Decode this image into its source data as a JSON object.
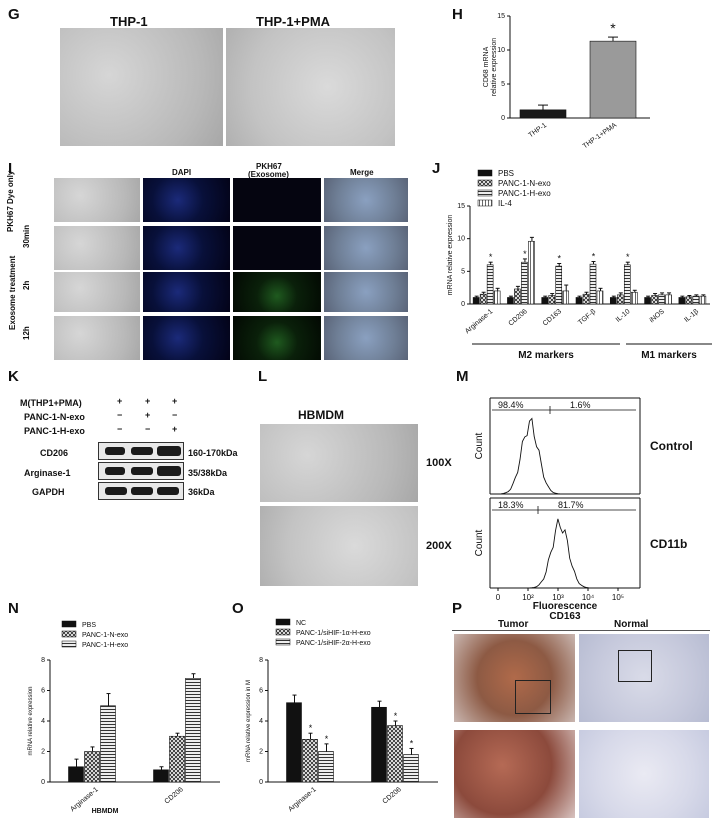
{
  "labels": {
    "G": "G",
    "H": "H",
    "I": "I",
    "J": "J",
    "K": "K",
    "L": "L",
    "M": "M",
    "N": "N",
    "O": "O",
    "P": "P"
  },
  "panelG": {
    "left_title": "THP-1",
    "right_title": "THP-1+PMA"
  },
  "panelI": {
    "col_headers": [
      "DAPI",
      "PKH67\n(Exosome)",
      "Merge"
    ],
    "col_header_dapi": "DAPI",
    "col_header_pkh": "PKH67",
    "col_header_pkh2": "(Exosome)",
    "col_header_merge": "Merge",
    "row_dye": "PKH67 Dye only",
    "row_group": "Exosome treatment",
    "row_30": "30min",
    "row_2h": "2h",
    "row_12h": "12h"
  },
  "panelK": {
    "cond1": "M(THP1+PMA)",
    "cond2": "PANC-1-N-exo",
    "cond3": "PANC-1-H-exo",
    "signs": [
      [
        "+",
        "+",
        "+"
      ],
      [
        "−",
        "+",
        "−"
      ],
      [
        "−",
        "−",
        "+"
      ]
    ],
    "bands": [
      {
        "name": "CD206",
        "size": "160-170kDa"
      },
      {
        "name": "Arginase-1",
        "size": "35/38kDa"
      },
      {
        "name": "GAPDH",
        "size": "36kDa"
      }
    ]
  },
  "panelL": {
    "title": "HBMDM",
    "mag1": "100X",
    "mag2": "200X"
  },
  "panelM": {
    "top_left_pct": "98.4%",
    "top_right_pct": "1.6%",
    "bot_left_pct": "18.3%",
    "bot_right_pct": "81.7%",
    "ylabel": "Count",
    "xlabel": "Fluorescence",
    "xlabel2": "CD163",
    "top_label": "Control",
    "bot_label": "CD11b",
    "ticks": [
      "0",
      "10²",
      "10³",
      "10⁴",
      "10⁵"
    ]
  },
  "panelP": {
    "tumor": "Tumor",
    "normal": "Normal"
  },
  "chart_data": [
    {
      "id": "H",
      "type": "bar",
      "categories": [
        "THP-1",
        "THP-1+PMA"
      ],
      "values": [
        1.2,
        11.3
      ],
      "errors": [
        0.7,
        0.6
      ],
      "ylabel": "CD68 mRNA",
      "ylabel2": "relative expression",
      "ylim": [
        0,
        15
      ],
      "yticks": [
        "0",
        "5",
        "10",
        "15"
      ],
      "significance": [
        {
          "index": 1,
          "mark": "*"
        }
      ],
      "colors": [
        "#1a1a1a",
        "#9a9a9a"
      ]
    },
    {
      "id": "J",
      "type": "bar",
      "ylabel": "mRNA relative expression",
      "ylim": [
        0,
        15
      ],
      "yticks": [
        "0",
        "5",
        "10",
        "15"
      ],
      "categories": [
        "Arginase-1",
        "CD206",
        "CD163",
        "TGF-β",
        "IL-10",
        "iNOS",
        "IL-1β"
      ],
      "series": [
        {
          "name": "PBS",
          "values": [
            1.0,
            1.0,
            1.0,
            1.0,
            1.0,
            1.0,
            1.0
          ],
          "errors": [
            0.2,
            0.2,
            0.2,
            0.2,
            0.2,
            0.2,
            0.2
          ]
        },
        {
          "name": "PANC-1-N-exo",
          "values": [
            1.5,
            2.3,
            1.3,
            1.5,
            1.4,
            1.3,
            1.1
          ],
          "errors": [
            0.3,
            0.4,
            0.3,
            0.3,
            0.3,
            0.3,
            0.2
          ]
        },
        {
          "name": "PANC-1-H-exo",
          "values": [
            6.0,
            6.4,
            5.8,
            6.1,
            6.0,
            1.4,
            1.2
          ],
          "errors": [
            0.4,
            0.5,
            0.4,
            0.4,
            0.4,
            0.3,
            0.2
          ]
        },
        {
          "name": "IL-4",
          "values": [
            2.0,
            9.6,
            2.0,
            2.0,
            1.8,
            1.4,
            1.2
          ],
          "errors": [
            0.4,
            0.6,
            0.9,
            0.4,
            0.3,
            0.3,
            0.2
          ]
        }
      ],
      "significance": [
        0,
        1,
        2,
        3,
        4
      ],
      "group_labels": [
        "M2 markers",
        "M1 markers"
      ]
    },
    {
      "id": "N",
      "type": "bar",
      "ylabel": "mRNA relative expression",
      "xlabel": "HBMDM",
      "ylim": [
        0,
        8
      ],
      "yticks": [
        "0",
        "2",
        "4",
        "6",
        "8"
      ],
      "categories": [
        "Arginase-1",
        "CD206"
      ],
      "series": [
        {
          "name": "PBS",
          "values": [
            1.0,
            0.8
          ],
          "errors": [
            0.5,
            0.2
          ]
        },
        {
          "name": "PANC-1-N-exo",
          "values": [
            2.0,
            3.0
          ],
          "errors": [
            0.3,
            0.2
          ]
        },
        {
          "name": "PANC-1-H-exo",
          "values": [
            5.0,
            6.8
          ],
          "errors": [
            0.8,
            0.3
          ]
        }
      ],
      "significance": [
        2
      ]
    },
    {
      "id": "O",
      "type": "bar",
      "ylabel": "mRNA relative expression in M",
      "ylim": [
        0,
        8
      ],
      "yticks": [
        "0",
        "2",
        "4",
        "6",
        "8"
      ],
      "categories": [
        "Arginase-1",
        "CD206"
      ],
      "series": [
        {
          "name": "NC",
          "values": [
            5.2,
            4.9
          ],
          "errors": [
            0.5,
            0.4
          ]
        },
        {
          "name": "PANC-1/siHIF-1α-H-exo",
          "values": [
            2.8,
            3.7
          ],
          "errors": [
            0.4,
            0.3
          ]
        },
        {
          "name": "PANC-1/siHIF-2α-H-exo",
          "values": [
            2.0,
            1.8
          ],
          "errors": [
            0.5,
            0.4
          ]
        }
      ],
      "significance": [
        1,
        2
      ]
    }
  ]
}
